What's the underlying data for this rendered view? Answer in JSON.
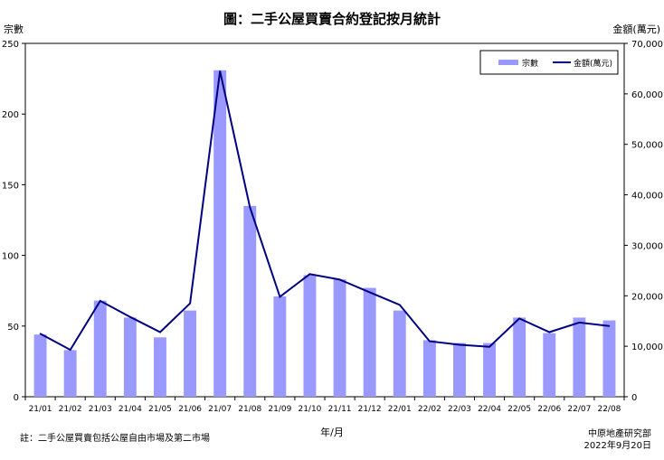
{
  "title": "圖：二手公屋買賣合約登記按月統計",
  "footer": {
    "note": "註：二手公屋買賣包括公屋自由市場及第二市場",
    "source_org": "中原地產研究部",
    "source_date": "2022年9月20日"
  },
  "chart_data": {
    "type": "bar",
    "title": "圖：二手公屋買賣合約登記按月統計",
    "xlabel": "年/月",
    "ylabel": "宗數",
    "y2label": "金額(萬元)",
    "categories": [
      "21/01",
      "21/02",
      "21/03",
      "21/04",
      "21/05",
      "21/06",
      "21/07",
      "21/08",
      "21/09",
      "21/10",
      "21/11",
      "21/12",
      "22/01",
      "22/02",
      "22/03",
      "22/04",
      "22/05",
      "22/06",
      "22/07",
      "22/08"
    ],
    "ylim": [
      0,
      250
    ],
    "y2lim": [
      0,
      70000
    ],
    "yticks": [
      "0",
      "50",
      "100",
      "150",
      "200",
      "250"
    ],
    "y2ticks": [
      "0",
      "10,000",
      "20,000",
      "30,000",
      "40,000",
      "50,000",
      "60,000",
      "70,000"
    ],
    "legend_position": "top-right",
    "grid": false,
    "series": [
      {
        "name": "宗數",
        "type": "bar",
        "axis": "left",
        "color": "#9999ff",
        "values": [
          44,
          33,
          68,
          56,
          42,
          61,
          231,
          135,
          71,
          86,
          83,
          77,
          61,
          40,
          38,
          38,
          56,
          45,
          56,
          54
        ]
      },
      {
        "name": "金額(萬元)",
        "type": "line",
        "axis": "right",
        "color": "#000080",
        "values": [
          12500,
          9300,
          19000,
          15800,
          12800,
          18500,
          64500,
          37500,
          19800,
          24300,
          23200,
          20700,
          18200,
          11000,
          10300,
          9900,
          15500,
          12800,
          14700,
          14000
        ]
      }
    ]
  }
}
